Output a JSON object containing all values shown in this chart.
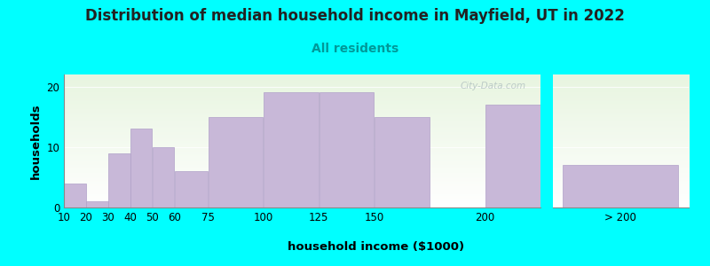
{
  "title": "Distribution of median household income in Mayfield, UT in 2022",
  "subtitle": "All residents",
  "xlabel": "household income ($1000)",
  "ylabel": "households",
  "background_color": "#00FFFF",
  "plot_bg_gradient_top": "#e8f5e0",
  "plot_bg_gradient_bottom": "#ffffff",
  "bar_color": "#c8b8d8",
  "bar_edge_color": "#b0a0c8",
  "bar_values": [
    4,
    1,
    9,
    13,
    10,
    6,
    15,
    19,
    19,
    15,
    17,
    7
  ],
  "bar_lefts": [
    10,
    20,
    30,
    40,
    50,
    60,
    75,
    100,
    125,
    150,
    200,
    250
  ],
  "bar_widths": [
    10,
    10,
    10,
    10,
    10,
    15,
    25,
    25,
    25,
    25,
    50,
    50
  ],
  "xtick_labels_main": [
    "10",
    "20",
    "30",
    "40",
    "50",
    "60",
    "75",
    "100",
    "125",
    "150",
    "200"
  ],
  "xtick_labels_right": [
    "> 200"
  ],
  "ylim": [
    0,
    22
  ],
  "yticks": [
    0,
    10,
    20
  ],
  "watermark": "City-Data.com",
  "title_fontsize": 12,
  "subtitle_fontsize": 10,
  "label_fontsize": 9.5,
  "tick_fontsize": 8.5
}
